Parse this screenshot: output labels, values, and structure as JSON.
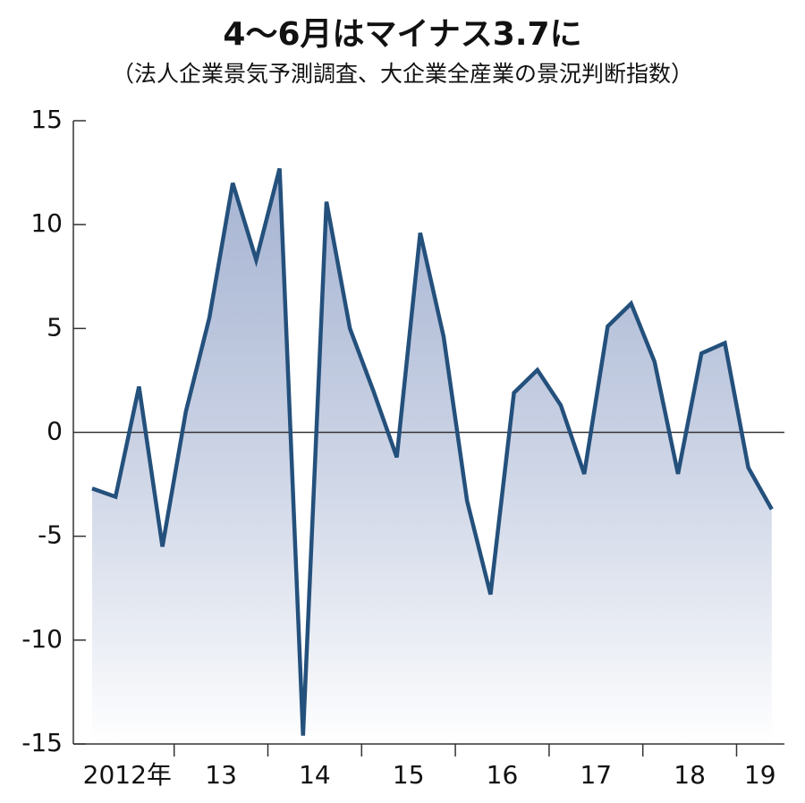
{
  "chart_data": {
    "type": "line",
    "title": "4～6月はマイナス3.7に",
    "subtitle": "（法人企業景気予測調査、大企業全産業の景況判断指数）",
    "categories": [
      null,
      "2012年",
      null,
      null,
      null,
      "13",
      null,
      null,
      null,
      "14",
      null,
      null,
      null,
      "15",
      null,
      null,
      null,
      "16",
      null,
      null,
      null,
      "17",
      null,
      null,
      null,
      "18",
      null,
      null,
      "19",
      null
    ],
    "series": [
      {
        "name": "景況判断指数",
        "color": "#24507c",
        "values": [
          -2.7,
          -3.1,
          2.2,
          -5.5,
          1.0,
          5.5,
          12.0,
          8.3,
          12.7,
          -14.6,
          11.1,
          5.0,
          2.0,
          -1.2,
          9.6,
          4.6,
          -3.3,
          -7.8,
          1.9,
          3.0,
          1.3,
          -2.0,
          5.1,
          6.2,
          3.4,
          -2.0,
          3.8,
          4.3,
          -1.7,
          -3.7
        ]
      }
    ],
    "ylim": [
      -15,
      15
    ],
    "yticks": [
      15,
      10,
      5,
      0,
      -5,
      -10,
      -15
    ],
    "grid": false
  }
}
